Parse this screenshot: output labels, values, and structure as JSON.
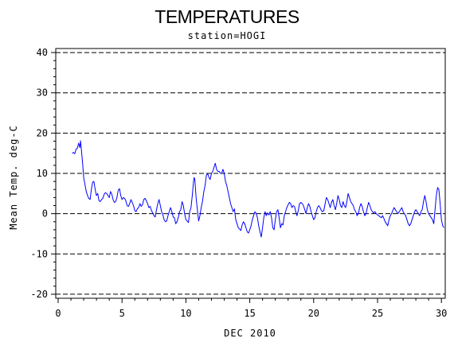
{
  "chart_data": {
    "type": "line",
    "title": "TEMPERATURES",
    "subtitle": "station=HOGI",
    "xlabel": "DEC 2010",
    "ylabel": "Mean Temp. deg-C",
    "xlim": [
      0,
      30.3
    ],
    "ylim": [
      -21,
      41
    ],
    "x_ticks": [
      0,
      5,
      10,
      15,
      20,
      25,
      30
    ],
    "y_ticks": [
      -20,
      -10,
      0,
      10,
      20,
      30,
      40
    ],
    "gridlines_y": [
      -20,
      -10,
      0,
      10,
      20,
      30,
      40
    ],
    "grid": "horizontal dashed",
    "line_color": "#0000ff",
    "series": [
      {
        "values": [
          [
            1.1,
            15.0
          ],
          [
            1.2,
            15.2
          ],
          [
            1.3,
            14.9
          ],
          [
            1.4,
            16.0
          ],
          [
            1.5,
            16.2
          ],
          [
            1.6,
            17.5
          ],
          [
            1.7,
            16.4
          ],
          [
            1.75,
            18.1
          ],
          [
            1.8,
            16.5
          ],
          [
            1.9,
            13.0
          ],
          [
            2.0,
            9.0
          ],
          [
            2.1,
            7.2
          ],
          [
            2.2,
            5.5
          ],
          [
            2.3,
            4.5
          ],
          [
            2.4,
            3.8
          ],
          [
            2.5,
            3.5
          ],
          [
            2.6,
            6.0
          ],
          [
            2.7,
            7.8
          ],
          [
            2.8,
            8.0
          ],
          [
            2.9,
            6.0
          ],
          [
            3.0,
            4.5
          ],
          [
            3.1,
            5.0
          ],
          [
            3.2,
            3.2
          ],
          [
            3.3,
            3.0
          ],
          [
            3.4,
            3.5
          ],
          [
            3.5,
            3.8
          ],
          [
            3.6,
            4.8
          ],
          [
            3.7,
            5.2
          ],
          [
            3.8,
            5.0
          ],
          [
            3.9,
            4.5
          ],
          [
            4.0,
            4.0
          ],
          [
            4.1,
            5.5
          ],
          [
            4.2,
            4.8
          ],
          [
            4.3,
            3.5
          ],
          [
            4.4,
            2.8
          ],
          [
            4.5,
            3.0
          ],
          [
            4.6,
            4.0
          ],
          [
            4.7,
            5.8
          ],
          [
            4.8,
            6.2
          ],
          [
            4.9,
            4.5
          ],
          [
            5.0,
            3.5
          ],
          [
            5.1,
            4.0
          ],
          [
            5.2,
            3.8
          ],
          [
            5.3,
            3.2
          ],
          [
            5.4,
            2.0
          ],
          [
            5.5,
            1.8
          ],
          [
            5.6,
            2.5
          ],
          [
            5.7,
            3.5
          ],
          [
            5.8,
            2.8
          ],
          [
            5.9,
            2.0
          ],
          [
            6.0,
            0.8
          ],
          [
            6.1,
            0.5
          ],
          [
            6.2,
            1.2
          ],
          [
            6.3,
            1.5
          ],
          [
            6.4,
            2.5
          ],
          [
            6.5,
            1.8
          ],
          [
            6.6,
            2.2
          ],
          [
            6.7,
            3.5
          ],
          [
            6.8,
            3.8
          ],
          [
            6.9,
            3.2
          ],
          [
            7.0,
            2.5
          ],
          [
            7.1,
            1.5
          ],
          [
            7.2,
            1.8
          ],
          [
            7.3,
            0.8
          ],
          [
            7.4,
            0.2
          ],
          [
            7.5,
            -0.5
          ],
          [
            7.6,
            -0.8
          ],
          [
            7.7,
            1.0
          ],
          [
            7.8,
            2.5
          ],
          [
            7.9,
            3.5
          ],
          [
            8.0,
            2.0
          ],
          [
            8.1,
            0.5
          ],
          [
            8.2,
            -0.3
          ],
          [
            8.3,
            -1.5
          ],
          [
            8.4,
            -2.0
          ],
          [
            8.5,
            -1.8
          ],
          [
            8.6,
            -0.5
          ],
          [
            8.7,
            0.5
          ],
          [
            8.8,
            1.5
          ],
          [
            8.9,
            0.5
          ],
          [
            9.0,
            -0.8
          ],
          [
            9.1,
            -1.0
          ],
          [
            9.2,
            -2.5
          ],
          [
            9.3,
            -2.0
          ],
          [
            9.4,
            -1.0
          ],
          [
            9.5,
            0.5
          ],
          [
            9.6,
            1.0
          ],
          [
            9.7,
            3.0
          ],
          [
            9.8,
            2.0
          ],
          [
            9.9,
            0.0
          ],
          [
            10.0,
            -1.5
          ],
          [
            10.1,
            -1.8
          ],
          [
            10.2,
            -2.2
          ],
          [
            10.3,
            0.5
          ],
          [
            10.4,
            1.5
          ],
          [
            10.5,
            4.5
          ],
          [
            10.6,
            8.0
          ],
          [
            10.65,
            9.0
          ],
          [
            10.7,
            8.5
          ],
          [
            10.8,
            4.0
          ],
          [
            10.9,
            1.0
          ],
          [
            11.0,
            -1.8
          ],
          [
            11.1,
            -0.5
          ],
          [
            11.2,
            1.5
          ],
          [
            11.3,
            3.0
          ],
          [
            11.4,
            5.5
          ],
          [
            11.5,
            7.0
          ],
          [
            11.6,
            9.5
          ],
          [
            11.7,
            10.0
          ],
          [
            11.8,
            9.0
          ],
          [
            11.9,
            8.5
          ],
          [
            12.0,
            10.0
          ],
          [
            12.1,
            10.5
          ],
          [
            12.2,
            11.5
          ],
          [
            12.3,
            12.5
          ],
          [
            12.4,
            11.0
          ],
          [
            12.5,
            10.5
          ],
          [
            12.6,
            10.5
          ],
          [
            12.7,
            10.0
          ],
          [
            12.8,
            10.0
          ],
          [
            12.9,
            11.0
          ],
          [
            13.0,
            10.0
          ],
          [
            13.1,
            8.0
          ],
          [
            13.2,
            7.0
          ],
          [
            13.3,
            5.5
          ],
          [
            13.4,
            4.0
          ],
          [
            13.5,
            2.5
          ],
          [
            13.6,
            1.5
          ],
          [
            13.7,
            0.5
          ],
          [
            13.8,
            1.2
          ],
          [
            13.9,
            -1.5
          ],
          [
            14.0,
            -2.5
          ],
          [
            14.1,
            -3.5
          ],
          [
            14.2,
            -3.8
          ],
          [
            14.3,
            -4.2
          ],
          [
            14.4,
            -2.8
          ],
          [
            14.5,
            -2.0
          ],
          [
            14.6,
            -2.5
          ],
          [
            14.7,
            -3.5
          ],
          [
            14.8,
            -4.5
          ],
          [
            14.9,
            -4.8
          ],
          [
            15.0,
            -4.0
          ],
          [
            15.1,
            -3.0
          ],
          [
            15.2,
            -1.5
          ],
          [
            15.3,
            -0.5
          ],
          [
            15.4,
            0.5
          ],
          [
            15.5,
            0.0
          ],
          [
            15.6,
            -1.0
          ],
          [
            15.7,
            -3.0
          ],
          [
            15.8,
            -4.5
          ],
          [
            15.9,
            -5.8
          ],
          [
            16.0,
            -3.5
          ],
          [
            16.1,
            -1.0
          ],
          [
            16.2,
            0.5
          ],
          [
            16.3,
            -0.5
          ],
          [
            16.4,
            0.2
          ],
          [
            16.5,
            -0.3
          ],
          [
            16.6,
            0.5
          ],
          [
            16.7,
            -1.0
          ],
          [
            16.8,
            -3.5
          ],
          [
            16.9,
            -4.0
          ],
          [
            17.0,
            -1.5
          ],
          [
            17.1,
            0.5
          ],
          [
            17.2,
            1.0
          ],
          [
            17.3,
            -1.0
          ],
          [
            17.4,
            -3.5
          ],
          [
            17.5,
            -2.5
          ],
          [
            17.6,
            -2.8
          ],
          [
            17.7,
            -0.5
          ],
          [
            17.8,
            0.5
          ],
          [
            17.9,
            1.5
          ],
          [
            18.0,
            2.2
          ],
          [
            18.1,
            2.8
          ],
          [
            18.2,
            2.5
          ],
          [
            18.3,
            1.5
          ],
          [
            18.4,
            2.0
          ],
          [
            18.5,
            1.8
          ],
          [
            18.6,
            0.5
          ],
          [
            18.7,
            -0.5
          ],
          [
            18.8,
            0.8
          ],
          [
            18.9,
            2.5
          ],
          [
            19.0,
            2.8
          ],
          [
            19.1,
            2.5
          ],
          [
            19.2,
            2.0
          ],
          [
            19.3,
            1.0
          ],
          [
            19.4,
            0.0
          ],
          [
            19.5,
            1.5
          ],
          [
            19.6,
            2.5
          ],
          [
            19.7,
            1.8
          ],
          [
            19.8,
            0.5
          ],
          [
            19.9,
            -0.5
          ],
          [
            20.0,
            -1.5
          ],
          [
            20.1,
            -1.0
          ],
          [
            20.2,
            0.5
          ],
          [
            20.3,
            1.5
          ],
          [
            20.4,
            2.0
          ],
          [
            20.5,
            1.5
          ],
          [
            20.6,
            0.8
          ],
          [
            20.7,
            0.5
          ],
          [
            20.8,
            0.8
          ],
          [
            20.9,
            2.5
          ],
          [
            21.0,
            4.0
          ],
          [
            21.1,
            3.5
          ],
          [
            21.2,
            2.5
          ],
          [
            21.3,
            1.5
          ],
          [
            21.4,
            2.8
          ],
          [
            21.5,
            3.5
          ],
          [
            21.6,
            2.0
          ],
          [
            21.7,
            1.0
          ],
          [
            21.8,
            2.5
          ],
          [
            21.9,
            4.5
          ],
          [
            22.0,
            3.5
          ],
          [
            22.1,
            2.0
          ],
          [
            22.2,
            1.5
          ],
          [
            22.3,
            3.0
          ],
          [
            22.4,
            2.0
          ],
          [
            22.5,
            1.5
          ],
          [
            22.6,
            3.0
          ],
          [
            22.7,
            5.0
          ],
          [
            22.8,
            4.0
          ],
          [
            22.9,
            3.0
          ],
          [
            23.0,
            2.5
          ],
          [
            23.1,
            2.0
          ],
          [
            23.2,
            1.0
          ],
          [
            23.3,
            0.5
          ],
          [
            23.4,
            -0.5
          ],
          [
            23.5,
            0.0
          ],
          [
            23.6,
            1.5
          ],
          [
            23.7,
            2.5
          ],
          [
            23.8,
            1.8
          ],
          [
            23.9,
            0.5
          ],
          [
            24.0,
            -0.5
          ],
          [
            24.1,
            0.0
          ],
          [
            24.2,
            1.5
          ],
          [
            24.3,
            2.8
          ],
          [
            24.4,
            2.0
          ],
          [
            24.5,
            1.0
          ],
          [
            24.6,
            0.5
          ],
          [
            24.7,
            0.2
          ],
          [
            24.8,
            0.5
          ],
          [
            24.9,
            0.0
          ],
          [
            25.0,
            -0.3
          ],
          [
            25.1,
            -0.5
          ],
          [
            25.2,
            -0.8
          ],
          [
            25.3,
            -1.0
          ],
          [
            25.4,
            -0.5
          ],
          [
            25.5,
            -1.2
          ],
          [
            25.6,
            -2.0
          ],
          [
            25.7,
            -2.5
          ],
          [
            25.8,
            -3.0
          ],
          [
            25.9,
            -1.5
          ],
          [
            26.0,
            -0.5
          ],
          [
            26.1,
            0.0
          ],
          [
            26.2,
            0.8
          ],
          [
            26.3,
            1.5
          ],
          [
            26.4,
            1.0
          ],
          [
            26.5,
            0.5
          ],
          [
            26.6,
            0.0
          ],
          [
            26.7,
            0.5
          ],
          [
            26.8,
            1.0
          ],
          [
            26.9,
            1.5
          ],
          [
            27.0,
            0.5
          ],
          [
            27.1,
            0.0
          ],
          [
            27.2,
            -0.5
          ],
          [
            27.3,
            -1.5
          ],
          [
            27.4,
            -2.5
          ],
          [
            27.5,
            -3.0
          ],
          [
            27.6,
            -2.5
          ],
          [
            27.7,
            -1.5
          ],
          [
            27.8,
            -0.5
          ],
          [
            27.9,
            0.5
          ],
          [
            28.0,
            1.0
          ],
          [
            28.1,
            0.5
          ],
          [
            28.2,
            0.0
          ],
          [
            28.3,
            -0.5
          ],
          [
            28.4,
            0.5
          ],
          [
            28.5,
            1.0
          ],
          [
            28.6,
            3.0
          ],
          [
            28.7,
            4.5
          ],
          [
            28.8,
            3.0
          ],
          [
            28.9,
            1.0
          ],
          [
            29.0,
            0.0
          ],
          [
            29.1,
            -0.5
          ],
          [
            29.2,
            -1.0
          ],
          [
            29.3,
            -1.5
          ],
          [
            29.4,
            -2.5
          ],
          [
            29.5,
            1.0
          ],
          [
            29.6,
            4.5
          ],
          [
            29.7,
            6.5
          ],
          [
            29.8,
            6.0
          ],
          [
            29.9,
            2.5
          ],
          [
            30.0,
            -1.5
          ],
          [
            30.1,
            -3.0
          ],
          [
            30.2,
            -3.5
          ]
        ]
      }
    ]
  }
}
